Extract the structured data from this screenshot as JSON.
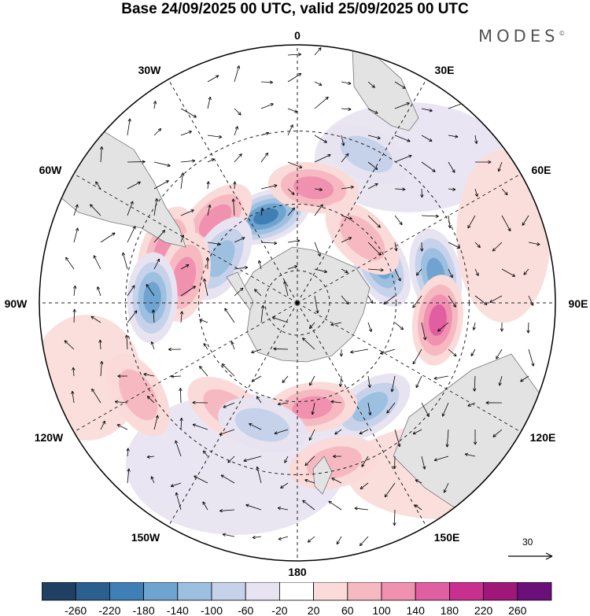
{
  "title": "Base 24/09/2025 00 UTC, valid 25/09/2025 00 UTC",
  "brand": "MODES",
  "brand_mark": "©",
  "reference_vector": {
    "value": "30"
  },
  "longitude_labels": {
    "0": "0",
    "30E": "30E",
    "60E": "60E",
    "90E": "90E",
    "120E": "120E",
    "150E": "150E",
    "180": "180",
    "150W": "150W",
    "120W": "120W",
    "90W": "90W",
    "60W": "60W",
    "30W": "30W"
  },
  "colorbar": {
    "colors": [
      "#1f3f63",
      "#2b5f8e",
      "#3f7fb5",
      "#6ea4cf",
      "#9dbfe0",
      "#c5d2ea",
      "#e7e3f1",
      "#ffffff",
      "#fadbd9",
      "#f6b9c2",
      "#f191b0",
      "#e05ea2",
      "#c92f8e",
      "#a0177a",
      "#6b0f7a"
    ],
    "labels": [
      "-260",
      "-220",
      "-180",
      "-140",
      "-100",
      "-60",
      "-20",
      "20",
      "60",
      "100",
      "140",
      "180",
      "220",
      "260"
    ]
  },
  "anomalies": [
    {
      "lon": 340,
      "lat": -62,
      "value": -180
    },
    {
      "lon": 8,
      "lat": -55,
      "value": 100
    },
    {
      "lon": 315,
      "lat": -55,
      "value": 100
    },
    {
      "lon": 300,
      "lat": -63,
      "value": -100
    },
    {
      "lon": 292,
      "lat": -48,
      "value": 100
    },
    {
      "lon": 283,
      "lat": -55,
      "value": 100
    },
    {
      "lon": 272,
      "lat": -47,
      "value": -140
    },
    {
      "lon": 65,
      "lat": -62,
      "value": -140
    },
    {
      "lon": 78,
      "lat": -48,
      "value": -140
    },
    {
      "lon": 97,
      "lat": -48,
      "value": 140
    },
    {
      "lon": 45,
      "lat": -62,
      "value": 60
    },
    {
      "lon": 145,
      "lat": -52,
      "value": -100
    },
    {
      "lon": 172,
      "lat": -58,
      "value": 100
    },
    {
      "lon": 167,
      "lat": -42,
      "value": 60
    },
    {
      "lon": 213,
      "lat": -52,
      "value": 60
    },
    {
      "lon": 196,
      "lat": -52,
      "value": -60
    },
    {
      "lon": 240,
      "lat": -37,
      "value": 60
    },
    {
      "lon": 25,
      "lat": -42,
      "value": -60
    }
  ]
}
